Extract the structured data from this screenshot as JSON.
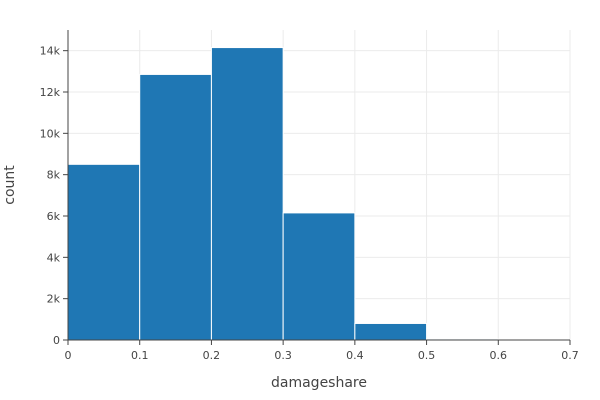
{
  "chart_data": {
    "type": "bar",
    "subtype": "histogram",
    "xlabel": "damageshare",
    "ylabel": "count",
    "xlim": [
      0,
      0.7
    ],
    "ylim": [
      0,
      15000
    ],
    "bin_width": 0.1,
    "bins": [
      {
        "start": 0.0,
        "end": 0.1,
        "count": 8500
      },
      {
        "start": 0.1,
        "end": 0.2,
        "count": 12850
      },
      {
        "start": 0.2,
        "end": 0.3,
        "count": 14150
      },
      {
        "start": 0.3,
        "end": 0.4,
        "count": 6150
      },
      {
        "start": 0.4,
        "end": 0.5,
        "count": 800
      },
      {
        "start": 0.5,
        "end": 0.6,
        "count": 50
      }
    ],
    "x_ticks": [
      {
        "value": 0,
        "label": "0"
      },
      {
        "value": 0.1,
        "label": "0.1"
      },
      {
        "value": 0.2,
        "label": "0.2"
      },
      {
        "value": 0.3,
        "label": "0.3"
      },
      {
        "value": 0.4,
        "label": "0.4"
      },
      {
        "value": 0.5,
        "label": "0.5"
      },
      {
        "value": 0.6,
        "label": "0.6"
      },
      {
        "value": 0.7,
        "label": "0.7"
      }
    ],
    "y_ticks": [
      {
        "value": 0,
        "label": "0"
      },
      {
        "value": 2000,
        "label": "2k"
      },
      {
        "value": 4000,
        "label": "4k"
      },
      {
        "value": 6000,
        "label": "6k"
      },
      {
        "value": 8000,
        "label": "8k"
      },
      {
        "value": 10000,
        "label": "10k"
      },
      {
        "value": 12000,
        "label": "12k"
      },
      {
        "value": 14000,
        "label": "14k"
      }
    ],
    "grid": true,
    "bar_color": "#1f77b4",
    "bar_edge_color": "#ffffff"
  }
}
